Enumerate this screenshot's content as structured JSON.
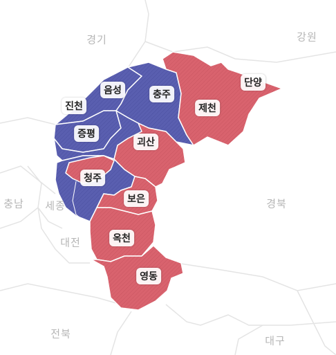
{
  "colors": {
    "red": "#d9636e",
    "blue": "#5a5fb0",
    "outline_neighbor": "#e2e2e2",
    "label_text": "#222222",
    "neighbor_text": "#b5b5b5"
  },
  "neighbors": {
    "gyeonggi": "경기",
    "gangwon": "강원",
    "chungnam": "충남",
    "sejong": "세종",
    "daejeon": "대전",
    "gyeongbuk": "경북",
    "jeonbuk": "전북",
    "daegu": "대구"
  },
  "regions": {
    "jincheon": {
      "name": "진천",
      "party": "blue"
    },
    "eumseong": {
      "name": "음성",
      "party": "blue"
    },
    "chungju": {
      "name": "충주",
      "party": "blue"
    },
    "jecheon": {
      "name": "제천",
      "party": "red"
    },
    "danyang": {
      "name": "단양",
      "party": "red"
    },
    "jeungpyeong": {
      "name": "증평",
      "party": "blue"
    },
    "goesan": {
      "name": "괴산",
      "party": "red"
    },
    "cheongju": {
      "name": "청주",
      "party": "red"
    },
    "boeun": {
      "name": "보은",
      "party": "red"
    },
    "okcheon": {
      "name": "옥천",
      "party": "red"
    },
    "yeongdong": {
      "name": "영동",
      "party": "red"
    }
  }
}
